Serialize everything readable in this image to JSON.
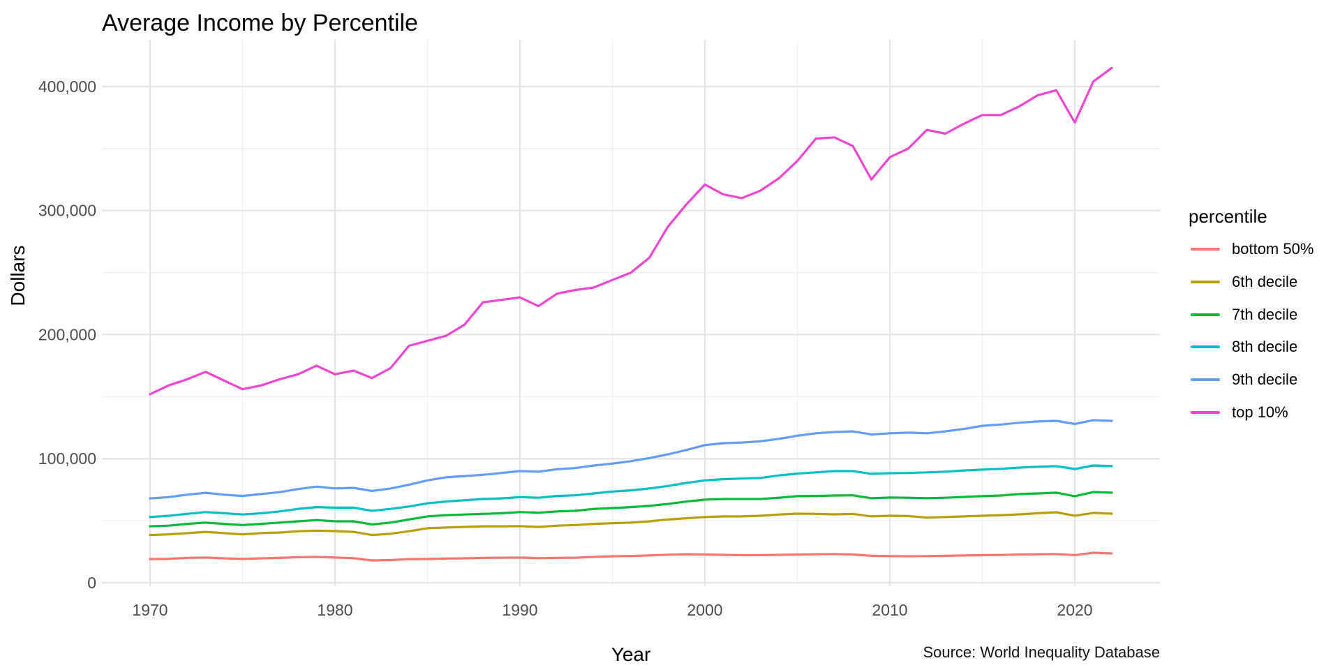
{
  "chart_data": {
    "type": "line",
    "title": "Average Income by Percentile",
    "xlabel": "Year",
    "ylabel": "Dollars",
    "caption": "Source: World Inequality Database",
    "legend": {
      "title": "percentile",
      "position": "right"
    },
    "grid": true,
    "x_ticks": [
      1970,
      1980,
      1990,
      2000,
      2010,
      2020
    ],
    "x_minor_ticks": [
      1975,
      1985,
      1995,
      2005,
      2015
    ],
    "y_ticks": [
      0,
      100000,
      200000,
      300000,
      400000
    ],
    "y_tick_labels": [
      "0",
      "100,000",
      "200,000",
      "300,000",
      "400,000"
    ],
    "y_minor_ticks": [
      50000,
      150000,
      250000,
      350000
    ],
    "xlim": [
      1967.4,
      2024.6
    ],
    "ylim": [
      0,
      440000
    ],
    "x": [
      1970,
      1971,
      1972,
      1973,
      1974,
      1975,
      1976,
      1977,
      1978,
      1979,
      1980,
      1981,
      1982,
      1983,
      1984,
      1985,
      1986,
      1987,
      1988,
      1989,
      1990,
      1991,
      1992,
      1993,
      1994,
      1995,
      1996,
      1997,
      1998,
      1999,
      2000,
      2001,
      2002,
      2003,
      2004,
      2005,
      2006,
      2007,
      2008,
      2009,
      2010,
      2011,
      2012,
      2013,
      2014,
      2015,
      2016,
      2017,
      2018,
      2019,
      2020,
      2021,
      2022
    ],
    "series": [
      {
        "name": "bottom 50%",
        "color": "#F8766D",
        "values": [
          19000,
          19300,
          20000,
          20300,
          19700,
          19200,
          19700,
          20000,
          20600,
          20800,
          20300,
          19800,
          18000,
          18300,
          19000,
          19100,
          19500,
          19700,
          20000,
          20200,
          20300,
          19800,
          20000,
          20200,
          20800,
          21400,
          21600,
          22000,
          22600,
          23000,
          22800,
          22500,
          22200,
          22200,
          22500,
          22700,
          23000,
          23200,
          22800,
          21700,
          21500,
          21400,
          21500,
          21700,
          22000,
          22200,
          22400,
          22800,
          23000,
          23200,
          22300,
          24200,
          23600
        ]
      },
      {
        "name": "6th decile",
        "color": "#B79F00",
        "values": [
          38500,
          39000,
          40000,
          41000,
          40000,
          39000,
          40000,
          40500,
          41500,
          42000,
          41600,
          41000,
          38500,
          39500,
          41500,
          44000,
          44500,
          45000,
          45500,
          45500,
          45600,
          45000,
          46000,
          46500,
          47500,
          48000,
          48500,
          49500,
          51000,
          52000,
          53000,
          53500,
          53500,
          54000,
          55000,
          55700,
          55500,
          55100,
          55500,
          53500,
          54000,
          53800,
          52500,
          53000,
          53500,
          54000,
          54500,
          55100,
          56000,
          56800,
          54000,
          56300,
          55700
        ]
      },
      {
        "name": "7th decile",
        "color": "#00BA38",
        "values": [
          45500,
          46000,
          47500,
          48500,
          47500,
          46500,
          47500,
          48500,
          49500,
          50500,
          49500,
          49500,
          47000,
          48500,
          51000,
          53500,
          54500,
          55000,
          55500,
          56000,
          57000,
          56500,
          57500,
          58000,
          59500,
          60200,
          61000,
          62000,
          63500,
          65500,
          67000,
          67500,
          67500,
          67500,
          68500,
          69800,
          70000,
          70300,
          70500,
          68100,
          68700,
          68500,
          68100,
          68500,
          69200,
          69800,
          70300,
          71500,
          72000,
          72600,
          69800,
          73100,
          72600
        ]
      },
      {
        "name": "8th decile",
        "color": "#00BFC4",
        "values": [
          53000,
          54000,
          55500,
          57000,
          56000,
          55000,
          56000,
          57500,
          59500,
          61000,
          60500,
          60500,
          58000,
          59500,
          61500,
          64000,
          65500,
          66500,
          67500,
          68000,
          69000,
          68500,
          70000,
          70500,
          72000,
          73500,
          74500,
          76000,
          78000,
          80500,
          82500,
          83500,
          84000,
          84500,
          86500,
          88000,
          89000,
          90000,
          90000,
          87800,
          88300,
          88500,
          89000,
          89500,
          90500,
          91200,
          91800,
          92800,
          93500,
          94000,
          91700,
          94500,
          94000
        ]
      },
      {
        "name": "9th decile",
        "color": "#619CFF",
        "values": [
          68000,
          69000,
          71000,
          72500,
          71000,
          70000,
          71500,
          73000,
          75500,
          77500,
          76000,
          76500,
          74000,
          76000,
          79000,
          82500,
          85000,
          86000,
          87000,
          88500,
          90000,
          89500,
          91500,
          92500,
          94500,
          96000,
          98000,
          100500,
          103500,
          107000,
          111000,
          112500,
          113000,
          114000,
          116000,
          118500,
          120500,
          121500,
          122000,
          119500,
          120500,
          121000,
          120500,
          122000,
          124000,
          126500,
          127500,
          129000,
          130000,
          130500,
          128000,
          131000,
          130500
        ]
      },
      {
        "name": "top 10%",
        "color": "#EF45D0",
        "values": [
          152000,
          159000,
          164000,
          170000,
          163000,
          156000,
          159000,
          164000,
          168000,
          175000,
          168000,
          171000,
          165000,
          173000,
          191000,
          195000,
          199000,
          208000,
          226000,
          228000,
          230000,
          223000,
          233000,
          236000,
          238000,
          244000,
          250000,
          262000,
          287000,
          305000,
          321000,
          313000,
          310000,
          316000,
          326000,
          340000,
          358000,
          359000,
          352000,
          325000,
          343000,
          350000,
          365000,
          362000,
          370000,
          377000,
          377000,
          384000,
          393000,
          397000,
          371000,
          404000,
          415000
        ]
      }
    ]
  },
  "style": {
    "grid_major_color": "#e4e4e4",
    "grid_minor_color": "#f0f0f0",
    "tick_text_color": "#4d4d4d",
    "line_width": 3.2
  }
}
